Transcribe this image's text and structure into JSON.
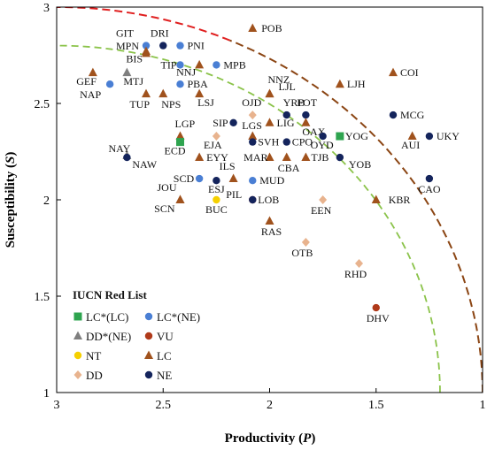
{
  "chart_data": {
    "type": "scatter",
    "xlabel": "Productivity",
    "xlabel_var": "P",
    "ylabel": "Susceptibility",
    "ylabel_var": "S",
    "xlim": [
      3,
      1
    ],
    "ylim": [
      1,
      3
    ],
    "x_reversed": true,
    "xticks": [
      "3",
      "2.5",
      "2",
      "1.5",
      "1"
    ],
    "yticks": [
      "1",
      "1.5",
      "2",
      "2.5",
      "3"
    ],
    "legend_title": "IUCN Red List",
    "legend": [
      {
        "key": "LCLC",
        "label": "LC*(LC)",
        "marker": "square",
        "color": "#2ea44f"
      },
      {
        "key": "LCNE",
        "label": "LC*(NE)",
        "marker": "circle",
        "color": "#4a7fd4"
      },
      {
        "key": "DDNE",
        "label": "DD*(NE)",
        "marker": "triangle",
        "color": "#7f7f7f"
      },
      {
        "key": "VU",
        "label": "VU",
        "marker": "circle",
        "color": "#b03a1a"
      },
      {
        "key": "NT",
        "label": "NT",
        "marker": "circle",
        "color": "#f5d000"
      },
      {
        "key": "LC",
        "label": "LC",
        "marker": "triangle",
        "color": "#a0521d"
      },
      {
        "key": "DD",
        "label": "DD",
        "marker": "diamond",
        "color": "#e8b38e"
      },
      {
        "key": "NE",
        "label": "NE",
        "marker": "circle",
        "color": "#14245c"
      }
    ],
    "curves": [
      {
        "name": "outer",
        "center": [
          3,
          1
        ],
        "p_at_s_min": 1.0,
        "s_at_p_max": 3.0,
        "color_top": "#e02020",
        "color_bottom": "#8b4513"
      },
      {
        "name": "inner",
        "center": [
          3,
          1
        ],
        "p_at_s_min": 1.2,
        "s_at_p_max": 2.8,
        "color": "#8bc34a"
      }
    ],
    "points": [
      {
        "label": "POB",
        "p": 2.08,
        "s": 2.89,
        "cat": "LC"
      },
      {
        "label": "GIT",
        "p": 2.58,
        "s": 2.8,
        "cat": "LCNE"
      },
      {
        "label": "DRI",
        "p": 2.5,
        "s": 2.8,
        "cat": "NE"
      },
      {
        "label": "PNI",
        "p": 2.42,
        "s": 2.8,
        "cat": "LCNE"
      },
      {
        "label": "MPN",
        "p": 2.58,
        "s": 2.77,
        "cat": "LC"
      },
      {
        "label": "BIS",
        "p": 2.58,
        "s": 2.76,
        "cat": "LC"
      },
      {
        "label": "TIP",
        "p": 2.42,
        "s": 2.7,
        "cat": "LCNE"
      },
      {
        "label": "NNJ",
        "p": 2.33,
        "s": 2.7,
        "cat": "LC"
      },
      {
        "label": "MPB",
        "p": 2.25,
        "s": 2.7,
        "cat": "LCNE"
      },
      {
        "label": "GEF",
        "p": 2.83,
        "s": 2.66,
        "cat": "LC"
      },
      {
        "label": "MTJ",
        "p": 2.67,
        "s": 2.66,
        "cat": "DDNE"
      },
      {
        "label": "NAP",
        "p": 2.75,
        "s": 2.6,
        "cat": "LCNE"
      },
      {
        "label": "PBA",
        "p": 2.42,
        "s": 2.6,
        "cat": "LCNE"
      },
      {
        "label": "TUP",
        "p": 2.58,
        "s": 2.55,
        "cat": "LC"
      },
      {
        "label": "NPS",
        "p": 2.5,
        "s": 2.55,
        "cat": "LC"
      },
      {
        "label": "LSJ",
        "p": 2.33,
        "s": 2.55,
        "cat": "LC"
      },
      {
        "label": "NNZ",
        "p": 2.0,
        "s": 2.55,
        "cat": "LC"
      },
      {
        "label": "LJL",
        "p": 2.0,
        "s": 2.55,
        "cat": "LC"
      },
      {
        "label": "COI",
        "p": 1.42,
        "s": 2.66,
        "cat": "LC"
      },
      {
        "label": "LJH",
        "p": 1.67,
        "s": 2.6,
        "cat": "LC"
      },
      {
        "label": "OJD",
        "p": 2.08,
        "s": 2.44,
        "cat": "DD"
      },
      {
        "label": "YRB",
        "p": 1.92,
        "s": 2.44,
        "cat": "NE"
      },
      {
        "label": "FOT",
        "p": 1.83,
        "s": 2.44,
        "cat": "NE"
      },
      {
        "label": "MCG",
        "p": 1.42,
        "s": 2.44,
        "cat": "NE"
      },
      {
        "label": "SIP",
        "p": 2.17,
        "s": 2.4,
        "cat": "NE"
      },
      {
        "label": "LIG",
        "p": 2.0,
        "s": 2.4,
        "cat": "LC"
      },
      {
        "label": "OAX",
        "p": 1.83,
        "s": 2.4,
        "cat": "LC"
      },
      {
        "label": "LGP",
        "p": 2.42,
        "s": 2.33,
        "cat": "LC"
      },
      {
        "label": "LGS",
        "p": 2.08,
        "s": 2.33,
        "cat": "LC"
      },
      {
        "label": "SVH",
        "p": 2.08,
        "s": 2.3,
        "cat": "NE"
      },
      {
        "label": "EJA",
        "p": 2.25,
        "s": 2.33,
        "cat": "DD"
      },
      {
        "label": "ECD",
        "p": 2.42,
        "s": 2.3,
        "cat": "LCLC"
      },
      {
        "label": "CPO",
        "p": 1.92,
        "s": 2.3,
        "cat": "NE"
      },
      {
        "label": "YOG",
        "p": 1.67,
        "s": 2.33,
        "cat": "LCLC"
      },
      {
        "label": "OYD",
        "p": 1.75,
        "s": 2.33,
        "cat": "NE"
      },
      {
        "label": "UKY",
        "p": 1.25,
        "s": 2.33,
        "cat": "NE"
      },
      {
        "label": "AUI",
        "p": 1.33,
        "s": 2.33,
        "cat": "LC"
      },
      {
        "label": "NAY",
        "p": 2.67,
        "s": 2.23,
        "cat": "DDNE"
      },
      {
        "label": "NAW",
        "p": 2.67,
        "s": 2.22,
        "cat": "NE"
      },
      {
        "label": "EYY",
        "p": 2.33,
        "s": 2.22,
        "cat": "LC"
      },
      {
        "label": "MAR",
        "p": 2.0,
        "s": 2.22,
        "cat": "LC"
      },
      {
        "label": "CBA",
        "p": 1.92,
        "s": 2.22,
        "cat": "LC"
      },
      {
        "label": "TJB",
        "p": 1.83,
        "s": 2.22,
        "cat": "LC"
      },
      {
        "label": "YOB",
        "p": 1.67,
        "s": 2.22,
        "cat": "NE"
      },
      {
        "label": "SCD",
        "p": 2.33,
        "s": 2.11,
        "cat": "LCNE"
      },
      {
        "label": "ILS",
        "p": 2.17,
        "s": 2.11,
        "cat": "LC"
      },
      {
        "label": "ESJ",
        "p": 2.25,
        "s": 2.1,
        "cat": "NE"
      },
      {
        "label": "MUD",
        "p": 2.08,
        "s": 2.1,
        "cat": "LCNE"
      },
      {
        "label": "CAO",
        "p": 1.25,
        "s": 2.11,
        "cat": "NE"
      },
      {
        "label": "PIL",
        "p": 2.08,
        "s": 2.0,
        "cat": "VU"
      },
      {
        "label": "LOB",
        "p": 2.08,
        "s": 2.0,
        "cat": "NE"
      },
      {
        "label": "JOU",
        "p": 2.42,
        "s": 2.0,
        "cat": "LC"
      },
      {
        "label": "SCN",
        "p": 2.42,
        "s": 2.0,
        "cat": "LC"
      },
      {
        "label": "BUC",
        "p": 2.25,
        "s": 2.0,
        "cat": "NT"
      },
      {
        "label": "EEN",
        "p": 1.75,
        "s": 2.0,
        "cat": "DD"
      },
      {
        "label": "KBR",
        "p": 1.5,
        "s": 2.0,
        "cat": "LC"
      },
      {
        "label": "RAS",
        "p": 2.0,
        "s": 1.89,
        "cat": "LC"
      },
      {
        "label": "OTB",
        "p": 1.83,
        "s": 1.78,
        "cat": "DD"
      },
      {
        "label": "RHD",
        "p": 1.58,
        "s": 1.67,
        "cat": "DD"
      },
      {
        "label": "DHV",
        "p": 1.5,
        "s": 1.44,
        "cat": "VU"
      }
    ]
  }
}
